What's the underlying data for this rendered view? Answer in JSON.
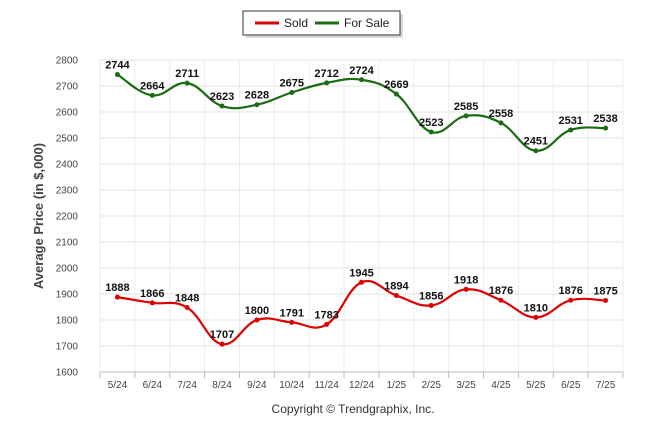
{
  "chart_data": {
    "type": "line",
    "ylabel": "Average Price (in $,000)",
    "ylim": [
      1600,
      2800
    ],
    "ytick_step": 100,
    "grid": true,
    "legend_position": "top-center",
    "categories": [
      "5/24",
      "6/24",
      "7/24",
      "8/24",
      "9/24",
      "10/24",
      "11/24",
      "12/24",
      "1/25",
      "2/25",
      "3/25",
      "4/25",
      "5/25",
      "6/25",
      "7/25"
    ],
    "series": [
      {
        "name": "Sold",
        "color": "#dd0000",
        "values": [
          1888,
          1866,
          1848,
          1707,
          1800,
          1791,
          1783,
          1945,
          1894,
          1856,
          1918,
          1876,
          1810,
          1876,
          1875
        ]
      },
      {
        "name": "For Sale",
        "color": "#1a6b12",
        "values": [
          2744,
          2664,
          2711,
          2623,
          2628,
          2675,
          2712,
          2724,
          2669,
          2523,
          2585,
          2558,
          2451,
          2531,
          2538
        ]
      }
    ]
  },
  "footer": {
    "copyright": "Copyright © Trendgraphix, Inc."
  }
}
